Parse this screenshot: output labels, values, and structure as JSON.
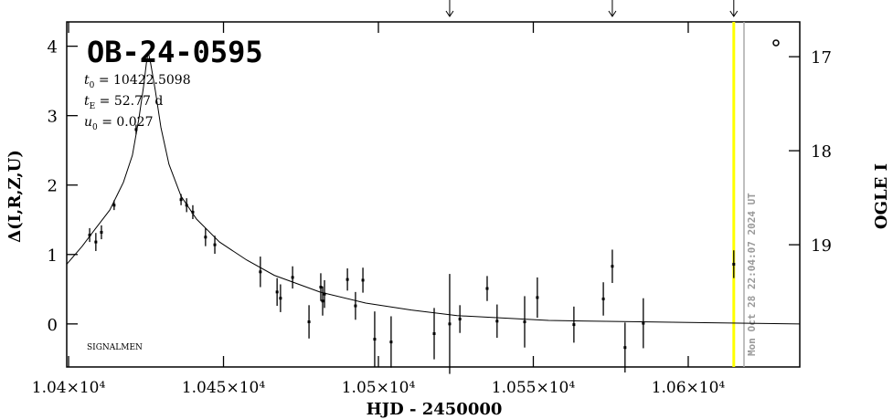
{
  "chart_data": {
    "type": "scatter",
    "title": "OB-24-0595",
    "params": [
      {
        "symbol": "t",
        "sub": "0",
        "text": " = 10422.5098"
      },
      {
        "symbol": "t",
        "sub": "E",
        "text": " = 52.77 d"
      },
      {
        "symbol": "u",
        "sub": "0",
        "text": " = 0.027"
      }
    ],
    "footnote": "SIGNALMEN",
    "x_label": "HJD - 2450000",
    "y_label": "Δ(I,R,Z,U)",
    "y2_label": "OGLE I",
    "date_label": "Mon Oct 28 22:04:07 2024 UT",
    "xlim": [
      10399.4,
      10636
    ],
    "xticks": [
      {
        "value": 10400,
        "label": "1.04×10⁴"
      },
      {
        "value": 10450,
        "label": "1.045×10⁴"
      },
      {
        "value": 10500,
        "label": "1.05×10⁴"
      },
      {
        "value": 10550,
        "label": "1.055×10⁴"
      },
      {
        "value": 10600,
        "label": "1.06×10⁴"
      }
    ],
    "ylim": [
      -0.62,
      4.35
    ],
    "yticks": [
      0,
      1,
      2,
      3,
      4
    ],
    "y2lim": [
      20.3,
      16.63
    ],
    "y2ticks": [
      17,
      18,
      19
    ],
    "arrows_x": [
      10523.0,
      10575.5,
      10614.7
    ],
    "vlines": [
      {
        "x": 10614.7,
        "color": "#ffff00"
      },
      {
        "x": 10618.0,
        "color": "#aaaaaa"
      }
    ],
    "points": {
      "color": "#000000",
      "x": [
        10406.8,
        10408.8,
        10410.6,
        10414.7,
        10421.8,
        10436.3,
        10438.1,
        10440.1,
        10444.2,
        10447.2,
        10461.9,
        10467.3,
        10468.4,
        10472.3,
        10477.6,
        10481.4,
        10482.0,
        10482.6,
        10490.0,
        10492.6,
        10495.0,
        10498.8,
        10504.1,
        10518.0,
        10523.0,
        10526.3,
        10535.1,
        10538.3,
        10547.2,
        10551.3,
        10563.1,
        10572.6,
        10575.5,
        10579.6,
        10585.5,
        10614.7
      ],
      "values": [
        1.28,
        1.18,
        1.32,
        1.71,
        2.8,
        1.79,
        1.71,
        1.61,
        1.25,
        1.14,
        0.75,
        0.46,
        0.37,
        0.67,
        0.03,
        0.53,
        0.33,
        0.43,
        0.64,
        0.26,
        0.63,
        -0.22,
        -0.26,
        -0.14,
        0.0,
        0.07,
        0.51,
        0.04,
        0.03,
        0.38,
        -0.01,
        0.36,
        0.83,
        -0.34,
        0.01,
        0.86
      ],
      "errors": [
        0.1,
        0.13,
        0.1,
        0.07,
        0.07,
        0.08,
        0.1,
        0.1,
        0.13,
        0.13,
        0.22,
        0.2,
        0.2,
        0.16,
        0.24,
        0.2,
        0.21,
        0.2,
        0.16,
        0.2,
        0.18,
        0.4,
        0.37,
        0.37,
        0.72,
        0.2,
        0.18,
        0.24,
        0.37,
        0.29,
        0.26,
        0.24,
        0.24,
        0.36,
        0.36,
        0.2
      ]
    },
    "model": {
      "color": "#000000",
      "x": [
        10399.4,
        10404.4,
        10408.8,
        10413.3,
        10417.7,
        10420.6,
        10422.7,
        10424.2,
        10425.1,
        10425.7,
        10426.5,
        10428.0,
        10429.8,
        10432.4,
        10436.3,
        10441.3,
        10448.7,
        10457.5,
        10466.4,
        10481.1,
        10495.9,
        10510.6,
        10525.4,
        10554.9,
        10584.4,
        10636.0
      ],
      "values": [
        0.86,
        1.12,
        1.38,
        1.64,
        2.04,
        2.43,
        2.96,
        3.42,
        3.75,
        3.92,
        3.75,
        3.36,
        2.83,
        2.3,
        1.84,
        1.51,
        1.18,
        0.92,
        0.7,
        0.46,
        0.3,
        0.2,
        0.12,
        0.05,
        0.03,
        0.0
      ]
    }
  }
}
